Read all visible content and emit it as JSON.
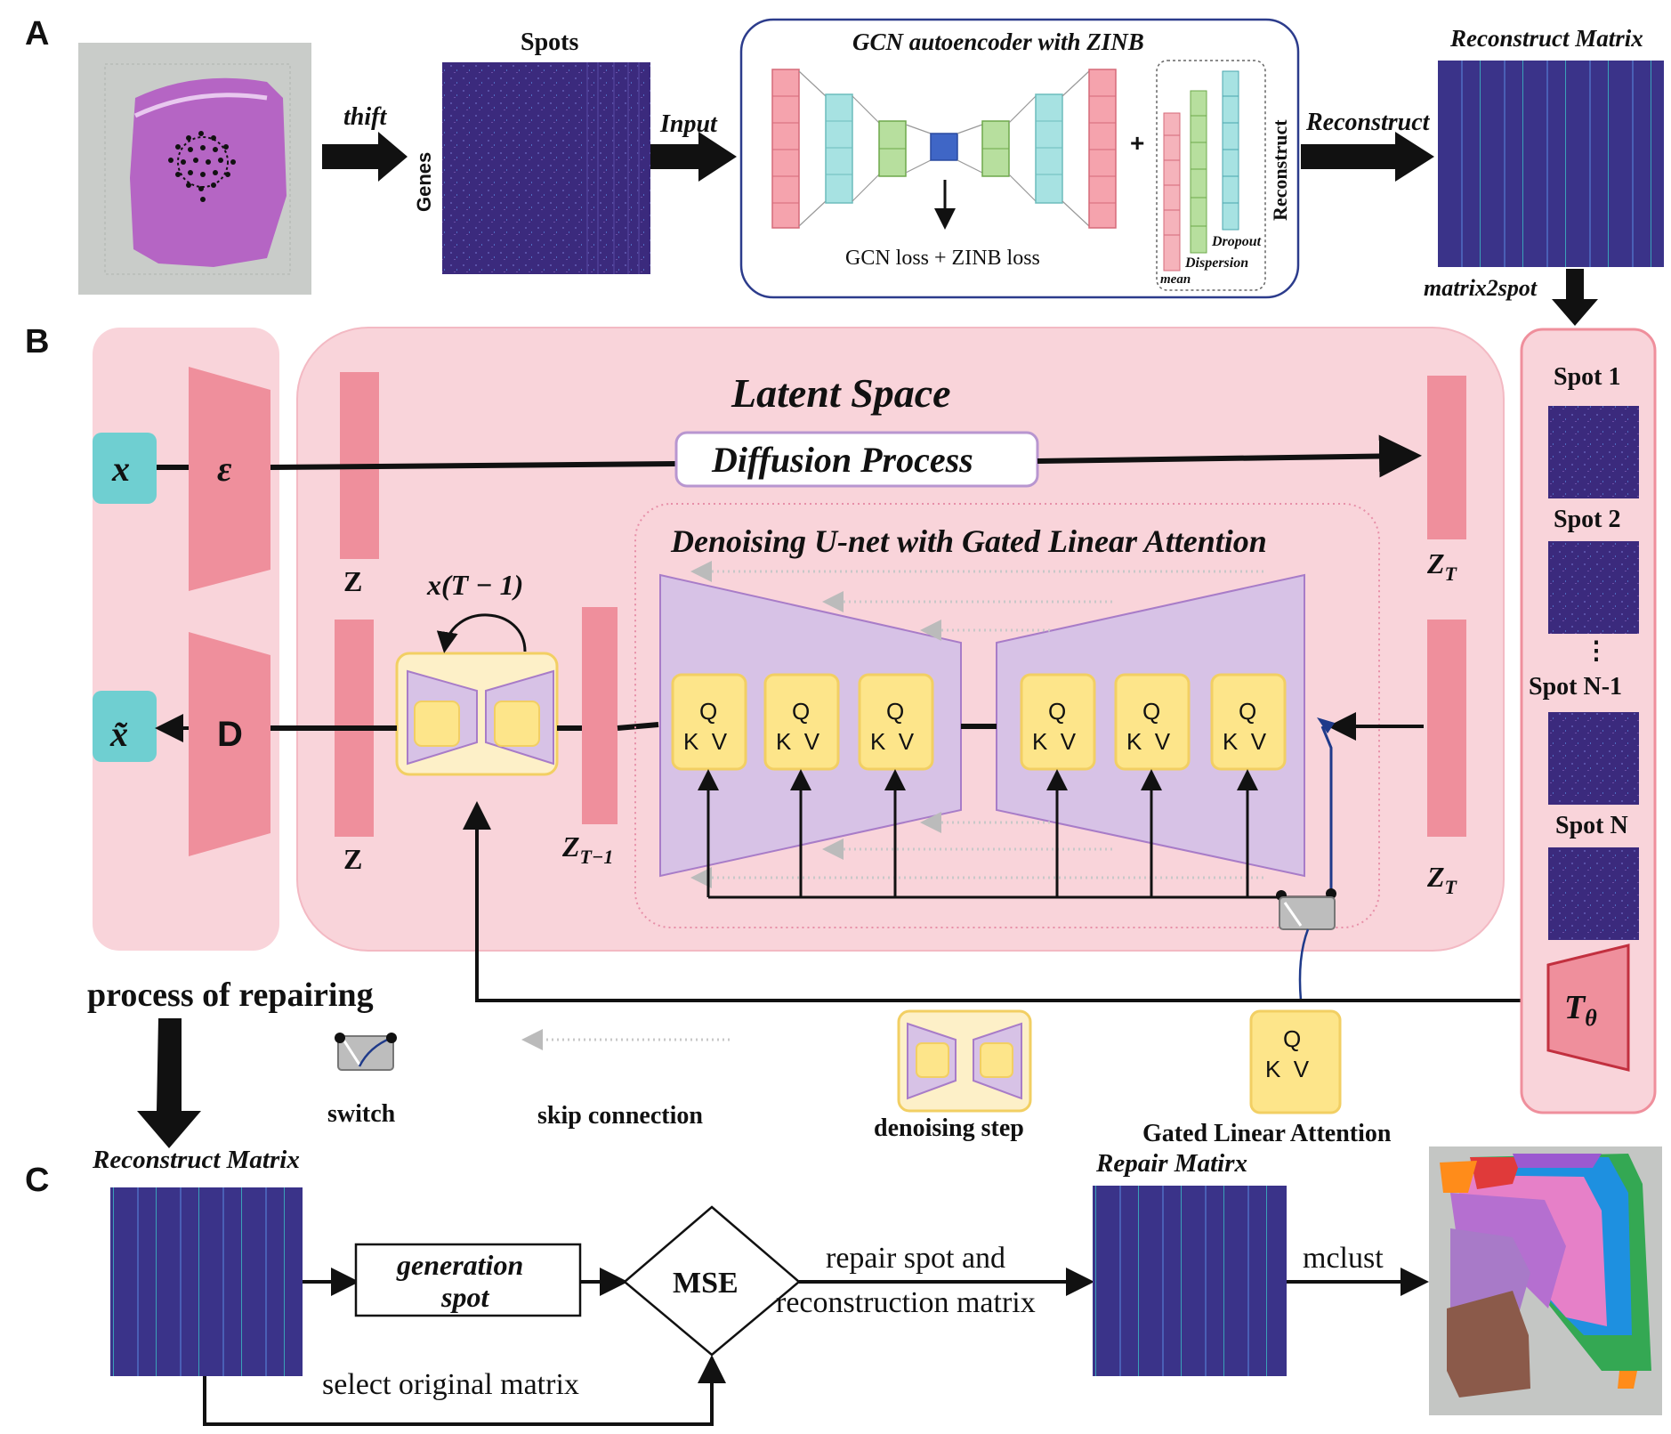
{
  "colors": {
    "pink_panel": "#f9d4da",
    "pink_bar": "#ef8f9c",
    "purple_unet": "#d7c2e6",
    "yellow_block": "#fde58a",
    "teal_box": "#6fcfd1",
    "dark_matrix": "#3a2a78"
  },
  "panel_a": {
    "letter": "A",
    "thift": "thift",
    "genes": "Genes",
    "spots": "Spots",
    "input": "Input",
    "gcn_title": "GCN  autoencoder with ZINB",
    "loss": "GCN loss + ZINB loss",
    "plus": "+",
    "dropout": "Dropout",
    "dispersion": "Dispersion",
    "mean": "mean",
    "reconstruct_vertical": "Reconstruct",
    "reconstruct_arrow": "Reconstruct",
    "reconstruct_matrix": "Reconstruct Matrix",
    "matrix2spot": "matrix2spot"
  },
  "panel_b": {
    "letter": "B",
    "latent_space": "Latent Space",
    "diffusion_process": "Diffusion Process",
    "unet_title": "Denoising U-net with Gated Linear Attention",
    "x": "x",
    "x_tilde": "x̃",
    "encoder": "ε",
    "decoder": "D",
    "z_top": "Z",
    "z_bottom": "Z",
    "zt_top": "ZT",
    "zt_bottom": "ZT",
    "zt_minus_1": "ZT−1",
    "x_t_minus_1": "x(T − 1)",
    "q": "Q",
    "kv": "K  V",
    "spot_labels": [
      "Spot 1",
      "Spot 2",
      "⋮",
      "Spot N-1",
      "Spot N"
    ],
    "t_theta": "Tθ"
  },
  "legend": {
    "process_of_repairing": "process of repairing",
    "switch": "switch",
    "skip_connection": "skip connection",
    "denoising_step": "denoising step",
    "gated_linear_attention": "Gated Linear Attention",
    "q": "Q",
    "kv": "K  V"
  },
  "panel_c": {
    "letter": "C",
    "reconstruct_matrix": "Reconstruct Matrix",
    "generation_line1": "generation",
    "generation_line2": "spot",
    "mse": "MSE",
    "repair_line1": "repair spot and",
    "repair_line2": "reconstruction matrix",
    "select_original": "select original matrix",
    "repair_matrix": "Repair Matirx",
    "mclust": "mclust"
  }
}
